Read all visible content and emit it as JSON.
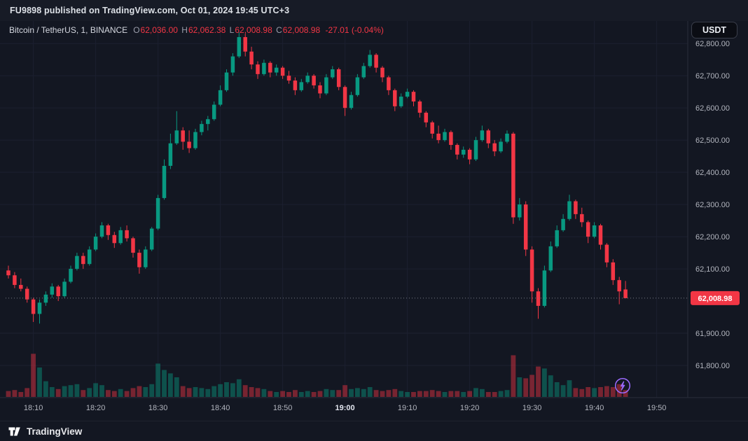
{
  "header": {
    "publish_note": "FU9898 published on TradingView.com, Oct 01, 2024 19:45 UTC+3"
  },
  "legend": {
    "symbol": "Bitcoin / TetherUS, 1, BINANCE",
    "o_label": "O",
    "o_value": "62,036.00",
    "h_label": "H",
    "h_value": "62,062.38",
    "l_label": "L",
    "l_value": "62,008.98",
    "c_label": "C",
    "c_value": "62,008.98",
    "change": "-27.01 (-0.04%)"
  },
  "currency_button": {
    "label": "USDT"
  },
  "footer": {
    "brand": "TradingView"
  },
  "colors": {
    "background": "#131722",
    "up": "#089981",
    "down": "#f23645",
    "grid": "#1c2030",
    "axis_separator": "#2a2e39",
    "axis_text": "#b2b5be",
    "badge_bg": "#f23645",
    "price_line": "#787b86",
    "flash_purple": "#9c6bff"
  },
  "chart_data": {
    "type": "candlestick",
    "title": "Bitcoin / TetherUS, 1, BINANCE",
    "symbol": "Bitcoin / TetherUS",
    "exchange": "BINANCE",
    "interval_minutes": 1,
    "start_time": "18:06",
    "end_time": "19:45",
    "last_price": 62008.98,
    "last_price_label": "62,008.98",
    "ohlc_order": [
      "open",
      "high",
      "low",
      "close",
      "volume"
    ],
    "price_axis": {
      "min": 61700,
      "max": 62870,
      "ticks": [
        {
          "price": 62800,
          "label": "62,800.00"
        },
        {
          "price": 62700,
          "label": "62,700.00"
        },
        {
          "price": 62600,
          "label": "62,600.00"
        },
        {
          "price": 62500,
          "label": "62,500.00"
        },
        {
          "price": 62400,
          "label": "62,400.00"
        },
        {
          "price": 62300,
          "label": "62,300.00"
        },
        {
          "price": 62200,
          "label": "62,200.00"
        },
        {
          "price": 62100,
          "label": "62,100.00"
        },
        {
          "price": 61900,
          "label": "61,900.00"
        },
        {
          "price": 61800,
          "label": "61,800.00"
        }
      ]
    },
    "time_ticks": [
      {
        "label": "18:10",
        "i": 4,
        "major": false
      },
      {
        "label": "18:20",
        "i": 14,
        "major": false
      },
      {
        "label": "18:30",
        "i": 24,
        "major": false
      },
      {
        "label": "18:40",
        "i": 34,
        "major": false
      },
      {
        "label": "18:50",
        "i": 44,
        "major": false
      },
      {
        "label": "19:00",
        "i": 54,
        "major": true
      },
      {
        "label": "19:10",
        "i": 64,
        "major": false
      },
      {
        "label": "19:20",
        "i": 74,
        "major": false
      },
      {
        "label": "19:30",
        "i": 84,
        "major": false
      },
      {
        "label": "19:40",
        "i": 94,
        "major": false
      },
      {
        "label": "19:50",
        "i": 104,
        "major": false
      }
    ],
    "candles": [
      [
        62095,
        62110,
        62070,
        62080,
        12
      ],
      [
        62080,
        62090,
        62040,
        62050,
        14
      ],
      [
        62050,
        62070,
        62030,
        62038,
        10
      ],
      [
        62038,
        62045,
        61995,
        62005,
        18
      ],
      [
        62005,
        62010,
        61935,
        61960,
        88
      ],
      [
        61960,
        62005,
        61930,
        61995,
        60
      ],
      [
        61995,
        62030,
        61985,
        62020,
        32
      ],
      [
        62020,
        62055,
        62010,
        62045,
        20
      ],
      [
        62045,
        62050,
        62000,
        62015,
        16
      ],
      [
        62015,
        62070,
        62010,
        62060,
        22
      ],
      [
        62060,
        62110,
        62055,
        62100,
        24
      ],
      [
        62100,
        62150,
        62095,
        62140,
        26
      ],
      [
        62140,
        62150,
        62100,
        62115,
        14
      ],
      [
        62115,
        62170,
        62110,
        62160,
        18
      ],
      [
        62160,
        62210,
        62155,
        62200,
        28
      ],
      [
        62200,
        62245,
        62195,
        62235,
        24
      ],
      [
        62235,
        62240,
        62190,
        62205,
        14
      ],
      [
        62205,
        62215,
        62165,
        62180,
        12
      ],
      [
        62180,
        62230,
        62175,
        62220,
        16
      ],
      [
        62220,
        62235,
        62185,
        62195,
        12
      ],
      [
        62195,
        62200,
        62135,
        62150,
        18
      ],
      [
        62150,
        62160,
        62085,
        62105,
        22
      ],
      [
        62105,
        62170,
        62100,
        62160,
        20
      ],
      [
        62160,
        62230,
        62155,
        62225,
        26
      ],
      [
        62225,
        62330,
        62220,
        62320,
        68
      ],
      [
        62320,
        62440,
        62315,
        62420,
        55
      ],
      [
        62420,
        62520,
        62410,
        62490,
        48
      ],
      [
        62490,
        62590,
        62485,
        62530,
        40
      ],
      [
        62530,
        62540,
        62470,
        62495,
        22
      ],
      [
        62495,
        62530,
        62460,
        62475,
        18
      ],
      [
        62475,
        62535,
        62470,
        62525,
        20
      ],
      [
        62525,
        62560,
        62515,
        62550,
        18
      ],
      [
        62550,
        62575,
        62530,
        62565,
        16
      ],
      [
        62565,
        62620,
        62560,
        62610,
        22
      ],
      [
        62610,
        62670,
        62605,
        62655,
        26
      ],
      [
        62655,
        62720,
        62650,
        62710,
        30
      ],
      [
        62710,
        62770,
        62700,
        62760,
        28
      ],
      [
        62760,
        62835,
        62755,
        62820,
        36
      ],
      [
        62820,
        62830,
        62760,
        62775,
        24
      ],
      [
        62775,
        62790,
        62720,
        62735,
        20
      ],
      [
        62735,
        62745,
        62690,
        62705,
        18
      ],
      [
        62705,
        62750,
        62700,
        62740,
        16
      ],
      [
        62740,
        62745,
        62695,
        62710,
        12
      ],
      [
        62710,
        62735,
        62700,
        62725,
        10
      ],
      [
        62725,
        62730,
        62690,
        62700,
        12
      ],
      [
        62700,
        62715,
        62675,
        62685,
        10
      ],
      [
        62685,
        62695,
        62640,
        62655,
        14
      ],
      [
        62655,
        62690,
        62650,
        62680,
        10
      ],
      [
        62680,
        62710,
        62675,
        62700,
        12
      ],
      [
        62700,
        62705,
        62660,
        62670,
        10
      ],
      [
        62670,
        62680,
        62630,
        62645,
        12
      ],
      [
        62645,
        62705,
        62640,
        62695,
        16
      ],
      [
        62695,
        62730,
        62690,
        62720,
        14
      ],
      [
        62720,
        62725,
        62655,
        62665,
        14
      ],
      [
        62665,
        62670,
        62575,
        62600,
        24
      ],
      [
        62600,
        62650,
        62595,
        62640,
        16
      ],
      [
        62640,
        62705,
        62635,
        62695,
        18
      ],
      [
        62695,
        62740,
        62690,
        62730,
        16
      ],
      [
        62730,
        62780,
        62725,
        62765,
        20
      ],
      [
        62765,
        62770,
        62710,
        62725,
        14
      ],
      [
        62725,
        62730,
        62680,
        62695,
        12
      ],
      [
        62695,
        62700,
        62640,
        62655,
        14
      ],
      [
        62655,
        62660,
        62590,
        62605,
        16
      ],
      [
        62605,
        62645,
        62600,
        62635,
        12
      ],
      [
        62635,
        62660,
        62630,
        62650,
        10
      ],
      [
        62650,
        62655,
        62605,
        62620,
        10
      ],
      [
        62620,
        62625,
        62570,
        62585,
        12
      ],
      [
        62585,
        62590,
        62540,
        62555,
        12
      ],
      [
        62555,
        62560,
        62505,
        62520,
        14
      ],
      [
        62520,
        62545,
        62490,
        62500,
        12
      ],
      [
        62500,
        62535,
        62495,
        62525,
        10
      ],
      [
        62525,
        62530,
        62470,
        62485,
        12
      ],
      [
        62485,
        62490,
        62440,
        62455,
        12
      ],
      [
        62455,
        62480,
        62445,
        62470,
        10
      ],
      [
        62470,
        62475,
        62425,
        62440,
        12
      ],
      [
        62440,
        62510,
        62435,
        62500,
        18
      ],
      [
        62500,
        62545,
        62495,
        62530,
        16
      ],
      [
        62530,
        62535,
        62475,
        62490,
        10
      ],
      [
        62490,
        62500,
        62450,
        62465,
        10
      ],
      [
        62465,
        62505,
        62460,
        62495,
        12
      ],
      [
        62495,
        62530,
        62490,
        62520,
        14
      ],
      [
        62520,
        62525,
        62240,
        62260,
        85
      ],
      [
        62260,
        62320,
        62250,
        62300,
        40
      ],
      [
        62300,
        62310,
        62140,
        62160,
        38
      ],
      [
        62160,
        62170,
        61995,
        62030,
        45
      ],
      [
        62030,
        62040,
        61945,
        61985,
        62
      ],
      [
        61985,
        62110,
        61980,
        62095,
        58
      ],
      [
        62095,
        62185,
        62090,
        62170,
        44
      ],
      [
        62170,
        62235,
        62165,
        62220,
        30
      ],
      [
        62220,
        62270,
        62215,
        62255,
        24
      ],
      [
        62255,
        62330,
        62250,
        62310,
        34
      ],
      [
        62310,
        62315,
        62255,
        62270,
        18
      ],
      [
        62270,
        62290,
        62230,
        62245,
        16
      ],
      [
        62245,
        62250,
        62180,
        62200,
        20
      ],
      [
        62200,
        62245,
        62195,
        62235,
        18
      ],
      [
        62235,
        62240,
        62160,
        62175,
        20
      ],
      [
        62175,
        62180,
        62105,
        62120,
        22
      ],
      [
        62120,
        62130,
        62050,
        62065,
        20
      ],
      [
        62065,
        62075,
        61990,
        62030,
        26
      ],
      [
        62036,
        62062.38,
        62008.98,
        62008.98,
        14
      ]
    ]
  }
}
